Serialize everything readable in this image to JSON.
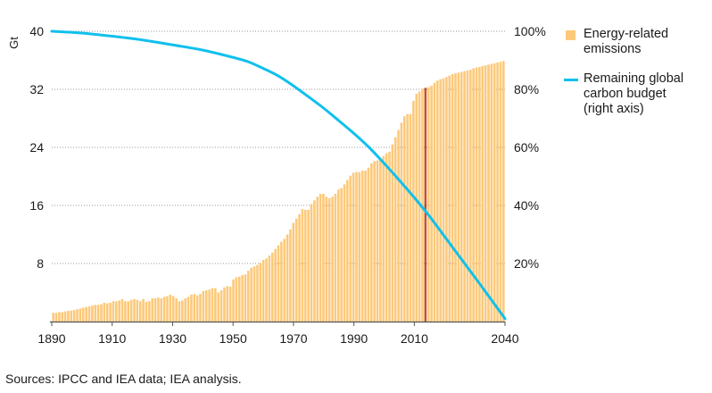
{
  "chart_data": {
    "type": "bar",
    "title": "",
    "xlabel": "",
    "ylabel": "Gt",
    "ylim": [
      0,
      40
    ],
    "y_ticks": [
      "8",
      "16",
      "24",
      "32",
      "40"
    ],
    "y2_ticks": [
      "20%",
      "40%",
      "60%",
      "80%",
      "100%"
    ],
    "y2lim": [
      0,
      100
    ],
    "x_ticks": [
      "1890",
      "1910",
      "1930",
      "1950",
      "1970",
      "1990",
      "2010",
      "2040"
    ],
    "grid": "horizontal dotted",
    "legend_position": "right",
    "highlight_year": 2014,
    "colors": {
      "bars": "#fcc97a",
      "highlight_bar": "#c8501e",
      "line": "#11c0ec",
      "grid": "#9a9a9a",
      "axis": "#555555"
    },
    "series": [
      {
        "name": "Energy-related emissions",
        "kind": "bar",
        "axis": "left",
        "x": [
          1890,
          1891,
          1892,
          1893,
          1894,
          1895,
          1896,
          1897,
          1898,
          1899,
          1900,
          1901,
          1902,
          1903,
          1904,
          1905,
          1906,
          1907,
          1908,
          1909,
          1910,
          1911,
          1912,
          1913,
          1914,
          1915,
          1916,
          1917,
          1918,
          1919,
          1920,
          1921,
          1922,
          1923,
          1924,
          1925,
          1926,
          1927,
          1928,
          1929,
          1930,
          1931,
          1932,
          1933,
          1934,
          1935,
          1936,
          1937,
          1938,
          1939,
          1940,
          1941,
          1942,
          1943,
          1944,
          1945,
          1946,
          1947,
          1948,
          1949,
          1950,
          1951,
          1952,
          1953,
          1954,
          1955,
          1956,
          1957,
          1958,
          1959,
          1960,
          1961,
          1962,
          1963,
          1964,
          1965,
          1966,
          1967,
          1968,
          1969,
          1970,
          1971,
          1972,
          1973,
          1974,
          1975,
          1976,
          1977,
          1978,
          1979,
          1980,
          1981,
          1982,
          1983,
          1984,
          1985,
          1986,
          1987,
          1988,
          1989,
          1990,
          1991,
          1992,
          1993,
          1994,
          1995,
          1996,
          1997,
          1998,
          1999,
          2000,
          2001,
          2002,
          2003,
          2004,
          2005,
          2006,
          2007,
          2008,
          2009,
          2010,
          2011,
          2012,
          2013,
          2014,
          2015,
          2016,
          2017,
          2018,
          2019,
          2020,
          2021,
          2022,
          2023,
          2024,
          2025,
          2026,
          2027,
          2028,
          2029,
          2030,
          2031,
          2032,
          2033,
          2034,
          2035,
          2036,
          2037,
          2038,
          2039,
          2040
        ],
        "values": [
          1.2,
          1.2,
          1.3,
          1.3,
          1.4,
          1.5,
          1.5,
          1.6,
          1.7,
          1.8,
          1.9,
          2.0,
          2.1,
          2.2,
          2.3,
          2.3,
          2.4,
          2.6,
          2.5,
          2.6,
          2.8,
          2.8,
          2.9,
          3.1,
          2.8,
          2.8,
          3.0,
          3.1,
          3.0,
          2.8,
          3.1,
          2.7,
          2.8,
          3.2,
          3.2,
          3.3,
          3.2,
          3.4,
          3.5,
          3.7,
          3.5,
          3.2,
          2.8,
          2.9,
          3.2,
          3.4,
          3.7,
          3.8,
          3.6,
          3.8,
          4.2,
          4.3,
          4.4,
          4.6,
          4.6,
          4.0,
          4.3,
          4.7,
          4.9,
          4.8,
          5.8,
          6.1,
          6.2,
          6.4,
          6.5,
          7.0,
          7.4,
          7.6,
          7.8,
          8.1,
          8.5,
          8.7,
          9.1,
          9.5,
          10.0,
          10.5,
          11.0,
          11.4,
          12.0,
          12.7,
          13.6,
          14.2,
          14.8,
          15.5,
          15.4,
          15.4,
          16.2,
          16.7,
          17.2,
          17.6,
          17.6,
          17.2,
          17.0,
          17.2,
          17.6,
          18.2,
          18.4,
          18.9,
          19.5,
          20.1,
          20.5,
          20.6,
          20.6,
          20.8,
          20.8,
          21.2,
          21.8,
          22.1,
          22.2,
          22.2,
          22.8,
          23.2,
          23.4,
          24.4,
          25.4,
          26.4,
          27.4,
          28.3,
          28.6,
          28.6,
          30.4,
          31.4,
          31.7,
          32.1,
          32.2,
          32.3,
          32.5,
          32.9,
          33.2,
          33.4,
          33.5,
          33.7,
          33.9,
          34.1,
          34.2,
          34.3,
          34.4,
          34.5,
          34.6,
          34.7,
          34.9,
          35.0,
          35.1,
          35.2,
          35.3,
          35.4,
          35.5,
          35.6,
          35.7,
          35.8,
          35.9
        ]
      },
      {
        "name": "Remaining global\ncarbon budget\n(right axis)",
        "kind": "line",
        "axis": "right",
        "x": [
          1890,
          1900,
          1910,
          1920,
          1930,
          1940,
          1950,
          1955,
          1960,
          1965,
          1970,
          1975,
          1980,
          1985,
          1990,
          1995,
          2000,
          2005,
          2010,
          2015,
          2020,
          2025,
          2030,
          2035,
          2040
        ],
        "values": [
          100,
          99.4,
          98.3,
          97.0,
          95.3,
          93.5,
          91.0,
          89.5,
          87.2,
          84.6,
          81.2,
          77.4,
          73.5,
          69.2,
          64.8,
          60.0,
          54.5,
          48.7,
          42.7,
          36.3,
          29.3,
          22.3,
          15.3,
          8.2,
          1.0
        ]
      }
    ]
  },
  "source_note": "Sources: IPCC and IEA data; IEA analysis."
}
